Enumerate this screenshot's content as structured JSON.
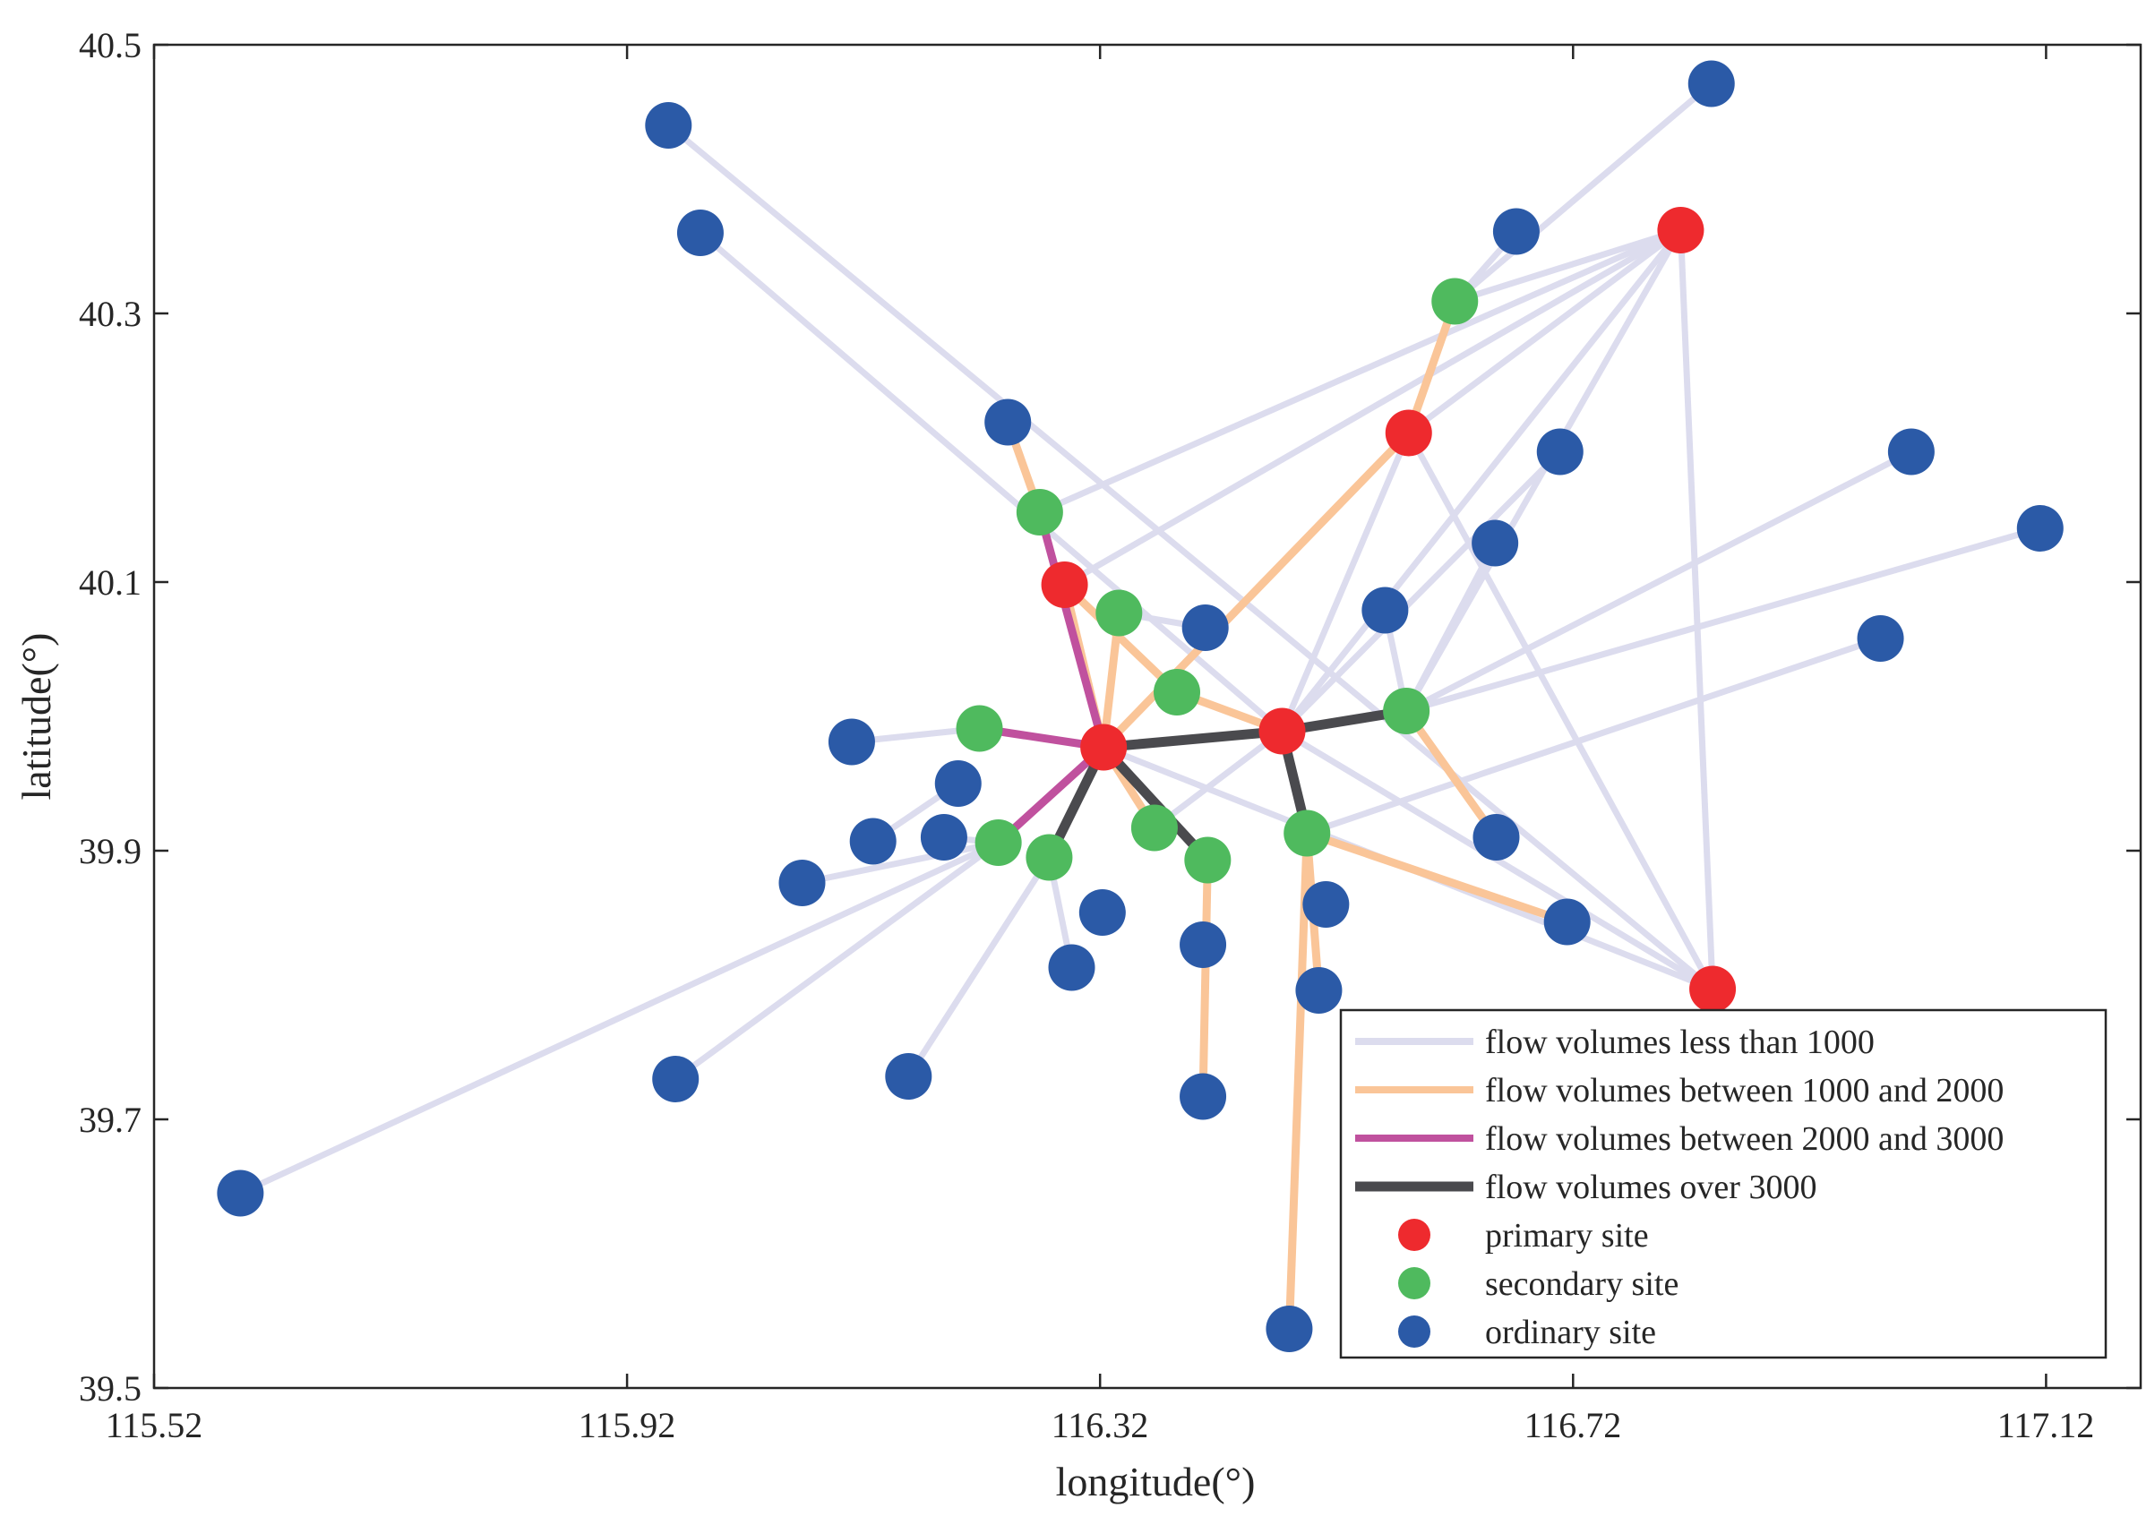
{
  "chart_data": {
    "type": "scatter",
    "xlabel": "longitude(°)",
    "ylabel": "latitude(°)",
    "xlim": [
      115.52,
      117.2
    ],
    "ylim": [
      39.5,
      40.5
    ],
    "xticks": [
      "115.52",
      "115.92",
      "116.32",
      "116.72",
      "117.12"
    ],
    "yticks": [
      "39.5",
      "39.7",
      "39.9",
      "40.1",
      "40.3",
      "40.5"
    ],
    "legend_position": "bottom-right",
    "legend": [
      {
        "label": "flow volumes less than 1000",
        "kind": "line",
        "key": "c1"
      },
      {
        "label": "flow volumes between 1000 and 2000",
        "kind": "line",
        "key": "c2"
      },
      {
        "label": "flow volumes between 2000 and 3000",
        "kind": "line",
        "key": "c3"
      },
      {
        "label": "flow volumes over 3000",
        "kind": "line",
        "key": "c4"
      },
      {
        "label": "primary site",
        "kind": "marker",
        "key": "primary"
      },
      {
        "label": "secondary site",
        "kind": "marker",
        "key": "secondary"
      },
      {
        "label": "ordinary site",
        "kind": "marker",
        "key": "ordinary"
      }
    ],
    "colors": {
      "c1": "#dcdcee",
      "c2": "#fac598",
      "c3": "#c0519e",
      "c4": "#4a4a4e",
      "primary": "#ee2a2e",
      "secondary": "#4fba5e",
      "ordinary": "#2b5aa7"
    },
    "sites": [
      {
        "id": "P1",
        "type": "primary",
        "lon": 116.29,
        "lat": 40.098
      },
      {
        "id": "P2",
        "type": "primary",
        "lon": 116.323,
        "lat": 39.977
      },
      {
        "id": "P3",
        "type": "primary",
        "lon": 116.474,
        "lat": 39.989
      },
      {
        "id": "P4",
        "type": "primary",
        "lon": 116.581,
        "lat": 40.211
      },
      {
        "id": "P5",
        "type": "primary",
        "lon": 116.811,
        "lat": 40.362
      },
      {
        "id": "P6",
        "type": "primary",
        "lon": 116.838,
        "lat": 39.797
      },
      {
        "id": "S1",
        "type": "secondary",
        "lon": 116.269,
        "lat": 40.152
      },
      {
        "id": "S2",
        "type": "secondary",
        "lon": 116.336,
        "lat": 40.077
      },
      {
        "id": "S3",
        "type": "secondary",
        "lon": 116.385,
        "lat": 40.018
      },
      {
        "id": "S4",
        "type": "secondary",
        "lon": 116.218,
        "lat": 39.991
      },
      {
        "id": "S5",
        "type": "secondary",
        "lon": 116.234,
        "lat": 39.906
      },
      {
        "id": "S6",
        "type": "secondary",
        "lon": 116.277,
        "lat": 39.895
      },
      {
        "id": "S7",
        "type": "secondary",
        "lon": 116.366,
        "lat": 39.917
      },
      {
        "id": "S8",
        "type": "secondary",
        "lon": 116.411,
        "lat": 39.893
      },
      {
        "id": "S9",
        "type": "secondary",
        "lon": 116.495,
        "lat": 39.913
      },
      {
        "id": "S10",
        "type": "secondary",
        "lon": 116.579,
        "lat": 40.004
      },
      {
        "id": "S11",
        "type": "secondary",
        "lon": 116.62,
        "lat": 40.309
      },
      {
        "id": "O1",
        "type": "ordinary",
        "lon": 115.593,
        "lat": 39.645
      },
      {
        "id": "O2",
        "type": "ordinary",
        "lon": 115.955,
        "lat": 40.44
      },
      {
        "id": "O3",
        "type": "ordinary",
        "lon": 115.982,
        "lat": 40.36
      },
      {
        "id": "O4",
        "type": "ordinary",
        "lon": 115.961,
        "lat": 39.73
      },
      {
        "id": "O5",
        "type": "ordinary",
        "lon": 116.068,
        "lat": 39.876
      },
      {
        "id": "O6",
        "type": "ordinary",
        "lon": 116.11,
        "lat": 39.981
      },
      {
        "id": "O7",
        "type": "ordinary",
        "lon": 116.128,
        "lat": 39.907
      },
      {
        "id": "O8",
        "type": "ordinary",
        "lon": 116.158,
        "lat": 39.732
      },
      {
        "id": "O9",
        "type": "ordinary",
        "lon": 116.188,
        "lat": 39.91
      },
      {
        "id": "O10",
        "type": "ordinary",
        "lon": 116.2,
        "lat": 39.95
      },
      {
        "id": "O11",
        "type": "ordinary",
        "lon": 116.242,
        "lat": 40.219
      },
      {
        "id": "O12",
        "type": "ordinary",
        "lon": 116.296,
        "lat": 39.813
      },
      {
        "id": "O13",
        "type": "ordinary",
        "lon": 116.322,
        "lat": 39.854
      },
      {
        "id": "O14",
        "type": "ordinary",
        "lon": 116.409,
        "lat": 40.066
      },
      {
        "id": "O15",
        "type": "ordinary",
        "lon": 116.407,
        "lat": 39.83
      },
      {
        "id": "O16",
        "type": "ordinary",
        "lon": 116.407,
        "lat": 39.717
      },
      {
        "id": "O17",
        "type": "ordinary",
        "lon": 116.48,
        "lat": 39.544
      },
      {
        "id": "O18",
        "type": "ordinary",
        "lon": 116.511,
        "lat": 39.86
      },
      {
        "id": "O19",
        "type": "ordinary",
        "lon": 116.505,
        "lat": 39.796
      },
      {
        "id": "O20",
        "type": "ordinary",
        "lon": 116.561,
        "lat": 40.079
      },
      {
        "id": "O21",
        "type": "ordinary",
        "lon": 116.654,
        "lat": 40.129
      },
      {
        "id": "O22",
        "type": "ordinary",
        "lon": 116.655,
        "lat": 39.91
      },
      {
        "id": "O23",
        "type": "ordinary",
        "lon": 116.672,
        "lat": 40.361
      },
      {
        "id": "O24",
        "type": "ordinary",
        "lon": 116.709,
        "lat": 40.197
      },
      {
        "id": "O25",
        "type": "ordinary",
        "lon": 116.715,
        "lat": 39.847
      },
      {
        "id": "O26",
        "type": "ordinary",
        "lon": 116.837,
        "lat": 40.471
      },
      {
        "id": "O27",
        "type": "ordinary",
        "lon": 116.98,
        "lat": 40.058
      },
      {
        "id": "O28",
        "type": "ordinary",
        "lon": 117.006,
        "lat": 40.197
      },
      {
        "id": "O29",
        "type": "ordinary",
        "lon": 117.115,
        "lat": 40.14
      }
    ],
    "links": [
      [
        "O1",
        "S5",
        "c1"
      ],
      [
        "O2",
        "P6",
        "c1"
      ],
      [
        "O3",
        "P3",
        "c1"
      ],
      [
        "O4",
        "S5",
        "c1"
      ],
      [
        "O5",
        "S5",
        "c1"
      ],
      [
        "O6",
        "S4",
        "c1"
      ],
      [
        "O7",
        "O10",
        "c1"
      ],
      [
        "O8",
        "S6",
        "c1"
      ],
      [
        "O9",
        "S5",
        "c1"
      ],
      [
        "S6",
        "O12",
        "c1"
      ],
      [
        "P1",
        "P5",
        "c1"
      ],
      [
        "S1",
        "P5",
        "c1"
      ],
      [
        "S2",
        "O14",
        "c1"
      ],
      [
        "P4",
        "P5",
        "c1"
      ],
      [
        "S11",
        "P5",
        "c1"
      ],
      [
        "O23",
        "S11",
        "c1"
      ],
      [
        "P5",
        "S10",
        "c1"
      ],
      [
        "P5",
        "P3",
        "c1"
      ],
      [
        "P5",
        "P6",
        "c1"
      ],
      [
        "P4",
        "P6",
        "c1"
      ],
      [
        "O20",
        "S10",
        "c1"
      ],
      [
        "O21",
        "S10",
        "c1"
      ],
      [
        "O24",
        "P3",
        "c1"
      ],
      [
        "O28",
        "S10",
        "c1"
      ],
      [
        "O29",
        "S10",
        "c1"
      ],
      [
        "O27",
        "S9",
        "c1"
      ],
      [
        "O26",
        "S11",
        "c1"
      ],
      [
        "P3",
        "P6",
        "c1"
      ],
      [
        "P2",
        "P6",
        "c1"
      ],
      [
        "S10",
        "O22",
        "c1"
      ],
      [
        "P4",
        "P3",
        "c1"
      ],
      [
        "S7",
        "P3",
        "c1"
      ],
      [
        "O11",
        "S1",
        "c2"
      ],
      [
        "P1",
        "P2",
        "c2"
      ],
      [
        "P1",
        "S3",
        "c2"
      ],
      [
        "S3",
        "P3",
        "c2"
      ],
      [
        "S2",
        "P2",
        "c2"
      ],
      [
        "P2",
        "S7",
        "c2"
      ],
      [
        "P2",
        "P4",
        "c2"
      ],
      [
        "P4",
        "S11",
        "c2"
      ],
      [
        "S10",
        "O22",
        "c2"
      ],
      [
        "S9",
        "O25",
        "c2"
      ],
      [
        "S9",
        "O17",
        "c2"
      ],
      [
        "S9",
        "O19",
        "c2"
      ],
      [
        "S8",
        "O16",
        "c2"
      ],
      [
        "S1",
        "P2",
        "c3"
      ],
      [
        "S4",
        "P2",
        "c3"
      ],
      [
        "P2",
        "S5",
        "c3"
      ],
      [
        "P2",
        "P3",
        "c4"
      ],
      [
        "P3",
        "S10",
        "c4"
      ],
      [
        "P3",
        "S9",
        "c4"
      ],
      [
        "P2",
        "S6",
        "c4"
      ],
      [
        "P2",
        "S8",
        "c4"
      ]
    ]
  }
}
